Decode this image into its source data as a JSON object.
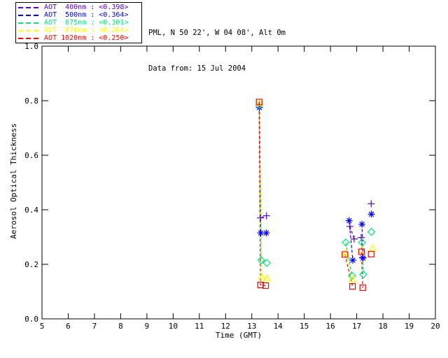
{
  "header": {
    "location_line": "PML, N 50 22', W 04 08', Alt 0m",
    "date_line": "Data from: 15 Jul 2004"
  },
  "legend": {
    "items": [
      {
        "label": "AOT  400nm : <0.398>",
        "color": "#5500cc"
      },
      {
        "label": "AOT  500nm : <0.364>",
        "color": "#0000ff"
      },
      {
        "label": "AOT  675nm : <0.301>",
        "color": "#00e878"
      },
      {
        "label": "AOT  870nm : <0.264>",
        "color": "#ffff00"
      },
      {
        "label": "AOT 1020nm : <0.250>",
        "color": "#ff0000"
      }
    ]
  },
  "chart_data": {
    "type": "line",
    "title": "",
    "xlabel": "Time (GMT)",
    "ylabel": "Aerosol Optical Thickness",
    "xlim": [
      5,
      20
    ],
    "ylim": [
      0.0,
      1.0
    ],
    "xticks": [
      5,
      6,
      7,
      8,
      9,
      10,
      11,
      12,
      13,
      14,
      15,
      16,
      17,
      18,
      19,
      20
    ],
    "yticks": [
      0.0,
      0.2,
      0.4,
      0.6,
      0.8,
      1.0
    ],
    "grid": false,
    "legend_position": "outside-top-left",
    "line_style": "dashed",
    "series": [
      {
        "name": "AOT 400nm",
        "mean": "<0.398>",
        "color": "#5500cc",
        "marker": "plus",
        "segments": [
          [
            [
              13.28,
              0.78
            ],
            [
              13.33,
              0.37
            ],
            [
              13.56,
              0.378
            ]
          ],
          [
            [
              16.74,
              0.339
            ],
            [
              16.9,
              0.293
            ]
          ],
          [
            [
              17.17,
              0.298
            ],
            [
              17.22,
              0.225
            ]
          ],
          [
            [
              17.55,
              0.422
            ]
          ]
        ]
      },
      {
        "name": "AOT 500nm",
        "mean": "<0.364>",
        "color": "#0000ff",
        "marker": "asterisk",
        "segments": [
          [
            [
              13.29,
              0.775
            ],
            [
              13.34,
              0.315
            ],
            [
              13.55,
              0.315
            ]
          ],
          [
            [
              16.71,
              0.36
            ],
            [
              16.85,
              0.215
            ]
          ],
          [
            [
              17.2,
              0.347
            ],
            [
              17.24,
              0.223
            ]
          ],
          [
            [
              17.56,
              0.384
            ]
          ]
        ]
      },
      {
        "name": "AOT 675nm",
        "mean": "<0.301>",
        "color": "#00e878",
        "marker": "diamond",
        "segments": [
          [
            [
              13.29,
              0.785
            ],
            [
              13.36,
              0.215
            ],
            [
              13.57,
              0.205
            ]
          ],
          [
            [
              16.58,
              0.28
            ],
            [
              16.82,
              0.158
            ]
          ],
          [
            [
              17.2,
              0.28
            ],
            [
              17.25,
              0.163
            ]
          ],
          [
            [
              17.56,
              0.319
            ]
          ]
        ]
      },
      {
        "name": "AOT 870nm",
        "mean": "<0.264>",
        "color": "#ffff00",
        "marker": "triangle",
        "segments": [
          [
            [
              13.29,
              0.79
            ],
            [
              13.38,
              0.153
            ],
            [
              13.58,
              0.148
            ]
          ],
          [
            [
              16.58,
              0.241
            ],
            [
              16.84,
              0.145
            ]
          ],
          [
            [
              17.19,
              0.254
            ]
          ],
          [
            [
              17.61,
              0.259
            ]
          ]
        ]
      },
      {
        "name": "AOT 1020nm",
        "mean": "<0.250>",
        "color": "#ff0000",
        "marker": "square",
        "segments": [
          [
            [
              13.28,
              0.795
            ],
            [
              13.33,
              0.124
            ],
            [
              13.53,
              0.122
            ]
          ],
          [
            [
              16.55,
              0.236
            ],
            [
              16.84,
              0.119
            ]
          ],
          [
            [
              17.18,
              0.246
            ],
            [
              17.23,
              0.114
            ]
          ],
          [
            [
              17.55,
              0.237
            ]
          ]
        ]
      }
    ]
  }
}
